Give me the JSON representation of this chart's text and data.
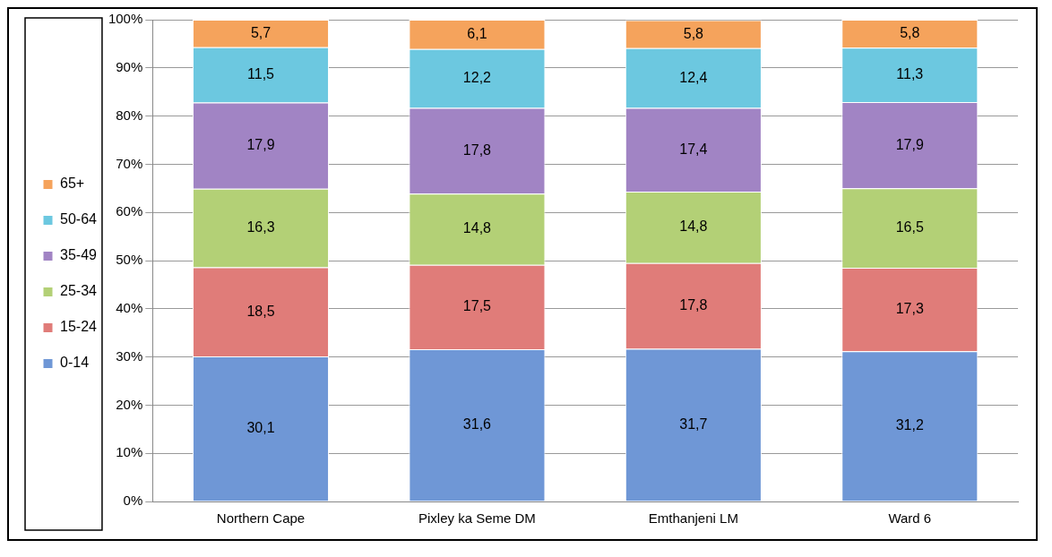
{
  "chart_data": {
    "type": "bar",
    "stacked": true,
    "categories": [
      "Northern Cape",
      "Pixley ka Seme DM",
      "Emthanjeni LM",
      "Ward 6"
    ],
    "series": [
      {
        "name": "0-14",
        "color": "#6f97d6",
        "values": [
          30.1,
          31.6,
          31.7,
          31.2
        ],
        "value_labels": [
          "30,1",
          "31,6",
          "31,7",
          "31,2"
        ]
      },
      {
        "name": "15-24",
        "color": "#e07c79",
        "values": [
          18.5,
          17.5,
          17.8,
          17.3
        ],
        "value_labels": [
          "18,5",
          "17,5",
          "17,8",
          "17,3"
        ]
      },
      {
        "name": "25-34",
        "color": "#b3d076",
        "values": [
          16.3,
          14.8,
          14.8,
          16.5
        ],
        "value_labels": [
          "16,3",
          "14,8",
          "14,8",
          "16,5"
        ]
      },
      {
        "name": "35-49",
        "color": "#a184c4",
        "values": [
          17.9,
          17.8,
          17.4,
          17.9
        ],
        "value_labels": [
          "17,9",
          "17,8",
          "17,4",
          "17,9"
        ]
      },
      {
        "name": "50-64",
        "color": "#6cc8e0",
        "values": [
          11.5,
          12.2,
          12.4,
          11.3
        ],
        "value_labels": [
          "11,5",
          "12,2",
          "12,4",
          "11,3"
        ]
      },
      {
        "name": "65+",
        "color": "#f5a35c",
        "values": [
          5.7,
          6.1,
          5.8,
          5.8
        ],
        "value_labels": [
          "5,7",
          "6,1",
          "5,8",
          "5,8"
        ]
      }
    ],
    "ylim": [
      0,
      100
    ],
    "yticks": [
      {
        "value": 0,
        "label": "0%"
      },
      {
        "value": 10,
        "label": "10%"
      },
      {
        "value": 20,
        "label": "20%"
      },
      {
        "value": 30,
        "label": "30%"
      },
      {
        "value": 40,
        "label": "40%"
      },
      {
        "value": 50,
        "label": "50%"
      },
      {
        "value": 60,
        "label": "60%"
      },
      {
        "value": 70,
        "label": "70%"
      },
      {
        "value": 80,
        "label": "80%"
      },
      {
        "value": 90,
        "label": "90%"
      },
      {
        "value": 100,
        "label": "100%"
      }
    ],
    "grid": "y",
    "legend": "left"
  }
}
